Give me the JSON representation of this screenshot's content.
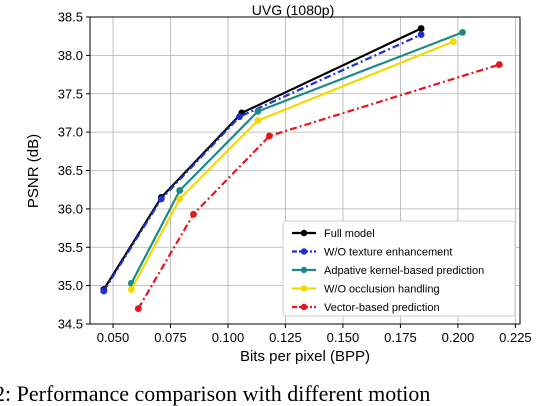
{
  "caption": "2: Performance comparison with different motion",
  "chart_data": {
    "type": "line",
    "title": "UVG (1080p)",
    "xlabel": "Bits per pixel (BPP)",
    "ylabel": "PSNR (dB)",
    "xlim": [
      0.04,
      0.227
    ],
    "ylim": [
      34.5,
      38.5
    ],
    "xticks": [
      "0.050",
      "0.075",
      "0.100",
      "0.125",
      "0.150",
      "0.175",
      "0.200",
      "0.225"
    ],
    "yticks": [
      "34.5",
      "35.0",
      "35.5",
      "36.0",
      "36.5",
      "37.0",
      "37.5",
      "38.0",
      "38.5"
    ],
    "grid": true,
    "legend_position": "lower right",
    "series": [
      {
        "name": "Full model",
        "color": "#000000",
        "linestyle": "solid",
        "x": [
          0.046,
          0.071,
          0.106,
          0.184
        ],
        "y": [
          34.95,
          36.15,
          37.25,
          38.35
        ]
      },
      {
        "name": "W/O texture enhancement",
        "color": "#1f2fd6",
        "linestyle": "dashdot",
        "x": [
          0.046,
          0.071,
          0.105,
          0.184
        ],
        "y": [
          34.93,
          36.13,
          37.2,
          38.27
        ]
      },
      {
        "name": "Adpative kernel-based prediction",
        "color": "#1b8a86",
        "linestyle": "solid",
        "x": [
          0.058,
          0.079,
          0.113,
          0.202
        ],
        "y": [
          35.03,
          36.24,
          37.27,
          38.3
        ]
      },
      {
        "name": "W/O occlusion handling",
        "color": "#f5d800",
        "linestyle": "solid",
        "x": [
          0.058,
          0.079,
          0.113,
          0.198
        ],
        "y": [
          34.95,
          36.13,
          37.15,
          38.18
        ]
      },
      {
        "name": "Vector-based prediction",
        "color": "#e6161a",
        "linestyle": "dashdot",
        "x": [
          0.061,
          0.085,
          0.118,
          0.218
        ],
        "y": [
          34.7,
          35.93,
          36.95,
          37.88
        ]
      }
    ]
  }
}
